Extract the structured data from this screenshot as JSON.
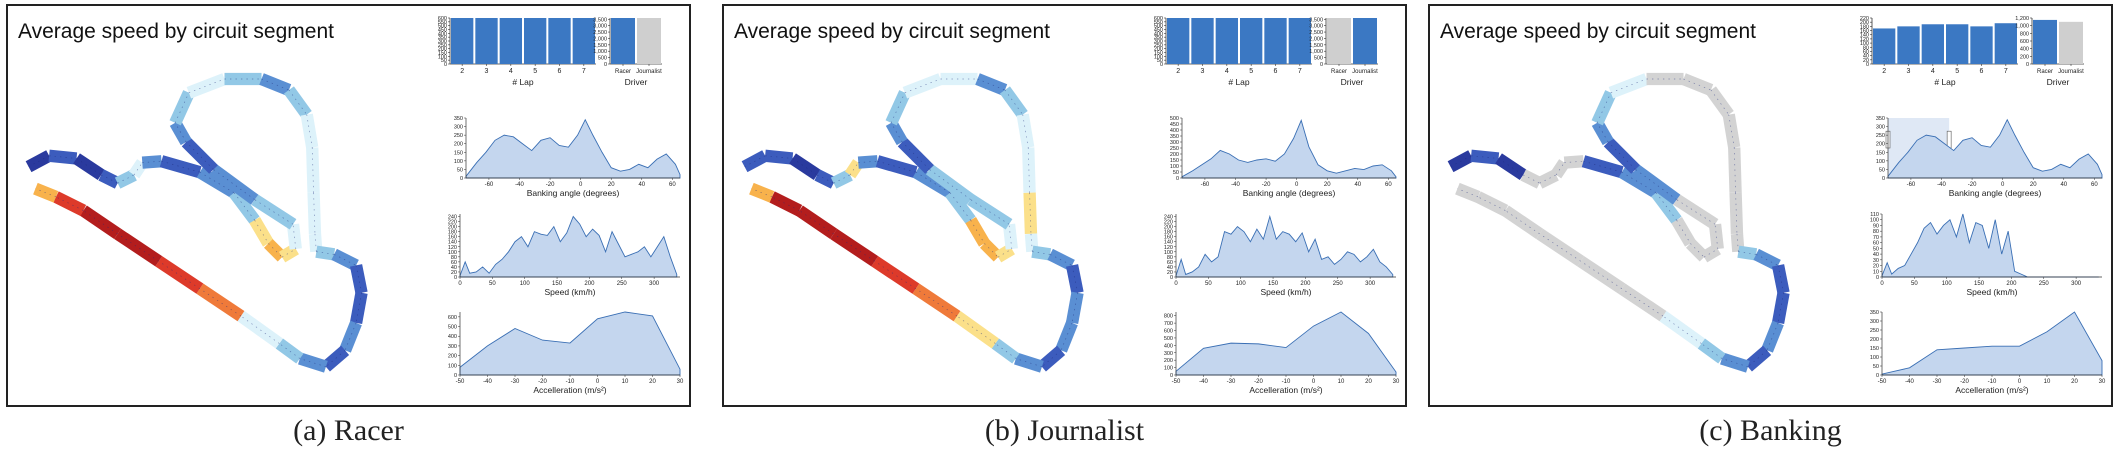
{
  "main_title": "Average speed by circuit segment",
  "colors": {
    "bar_active": "#3b78c3",
    "bar_inactive": "#cfcfcf",
    "area_fill": "#c4d6ee",
    "area_stroke": "#3a6fb4",
    "brush": "#dfe8f5",
    "track_grey": "#d3d3d3"
  },
  "track_palette": [
    "#2a3a9e",
    "#3c5cbd",
    "#5a8fd3",
    "#92c8e6",
    "#ddf2fa",
    "#fbe08a",
    "#f8b24c",
    "#ef7a3a",
    "#dd3a2a",
    "#b31d1d"
  ],
  "panels": [
    {
      "caption": "(a) Racer",
      "active_driver": "Racer",
      "brush": null
    },
    {
      "caption": "(b) Journalist",
      "active_driver": "Journalist",
      "brush": null
    },
    {
      "caption": "(c) Banking",
      "active_driver": "Racer",
      "brush": [
        -75,
        -35
      ]
    }
  ],
  "chart_data": [
    {
      "type": "bar",
      "panel": "(a) Racer",
      "title": "",
      "xlabel": "# Lap",
      "ylabel": "",
      "categories": [
        "2",
        "3",
        "4",
        "5",
        "6",
        "7"
      ],
      "values": [
        600,
        600,
        600,
        600,
        600,
        600
      ],
      "ylim": [
        0,
        600
      ],
      "yticks": [
        0,
        50,
        100,
        150,
        200,
        250,
        300,
        350,
        400,
        450,
        500,
        550,
        600
      ]
    },
    {
      "type": "bar",
      "panel": "(a) Racer",
      "title": "",
      "xlabel": "Driver",
      "ylabel": "",
      "categories": [
        "Racer",
        "Journalist"
      ],
      "values": [
        3600,
        3600
      ],
      "ylim": [
        0,
        3600
      ],
      "yticks": [
        0,
        500,
        1000,
        1500,
        2000,
        2500,
        3000,
        3500
      ],
      "tick_labels": [
        "0",
        "500",
        "1,000",
        "1,500",
        "2,000",
        "2,500",
        "3,000",
        "3,500"
      ],
      "active": [
        "Racer"
      ]
    },
    {
      "type": "area",
      "panel": "(a) Racer",
      "title": "",
      "xlabel": "Banking angle (degrees)",
      "ylabel": "",
      "xlim": [
        -75,
        65
      ],
      "ylim": [
        0,
        350
      ],
      "xticks": [
        -60,
        -40,
        -20,
        0,
        20,
        40,
        60
      ],
      "yticks": [
        0,
        50,
        100,
        150,
        200,
        250,
        300,
        350
      ],
      "x": [
        -75,
        -68,
        -62,
        -56,
        -50,
        -44,
        -38,
        -32,
        -26,
        -20,
        -14,
        -8,
        -2,
        3,
        8,
        14,
        20,
        26,
        32,
        38,
        44,
        50,
        56,
        62,
        65
      ],
      "y": [
        10,
        90,
        150,
        220,
        250,
        240,
        200,
        160,
        220,
        235,
        190,
        180,
        250,
        340,
        250,
        150,
        60,
        40,
        50,
        80,
        60,
        110,
        140,
        80,
        20
      ]
    },
    {
      "type": "area",
      "panel": "(a) Racer",
      "title": "",
      "xlabel": "Speed (km/h)",
      "ylabel": "",
      "xlim": [
        0,
        340
      ],
      "ylim": [
        0,
        250
      ],
      "xticks": [
        0,
        50,
        100,
        150,
        200,
        250,
        300
      ],
      "yticks": [
        0,
        20,
        40,
        60,
        80,
        100,
        120,
        140,
        160,
        180,
        200,
        220,
        240
      ],
      "x": [
        0,
        8,
        15,
        25,
        35,
        45,
        55,
        65,
        75,
        85,
        95,
        105,
        115,
        125,
        135,
        145,
        155,
        165,
        175,
        185,
        195,
        205,
        215,
        225,
        235,
        245,
        255,
        265,
        275,
        285,
        295,
        305,
        315,
        325,
        335
      ],
      "y": [
        5,
        60,
        15,
        20,
        40,
        15,
        50,
        70,
        100,
        140,
        160,
        120,
        180,
        170,
        165,
        200,
        140,
        175,
        240,
        210,
        160,
        190,
        165,
        100,
        180,
        130,
        80,
        90,
        100,
        120,
        80,
        120,
        160,
        80,
        10
      ]
    },
    {
      "type": "area",
      "panel": "(a) Racer",
      "title": "",
      "xlabel": "Accelleration (m/s²)",
      "ylabel": "",
      "xlim": [
        -50,
        30
      ],
      "ylim": [
        0,
        650
      ],
      "xticks": [
        -50,
        -40,
        -30,
        -20,
        -10,
        0,
        10,
        20,
        30
      ],
      "yticks": [
        0,
        100,
        200,
        300,
        400,
        500,
        600
      ],
      "x": [
        -50,
        -40,
        -30,
        -20,
        -10,
        0,
        10,
        20,
        30
      ],
      "y": [
        80,
        300,
        480,
        360,
        330,
        580,
        650,
        610,
        60
      ]
    },
    {
      "type": "bar",
      "panel": "(b) Journalist",
      "title": "",
      "xlabel": "# Lap",
      "ylabel": "",
      "categories": [
        "2",
        "3",
        "4",
        "5",
        "6",
        "7"
      ],
      "values": [
        600,
        600,
        600,
        600,
        600,
        600
      ],
      "ylim": [
        0,
        600
      ],
      "yticks": [
        0,
        50,
        100,
        150,
        200,
        250,
        300,
        350,
        400,
        450,
        500,
        550,
        600
      ]
    },
    {
      "type": "bar",
      "panel": "(b) Journalist",
      "title": "",
      "xlabel": "Driver",
      "ylabel": "",
      "categories": [
        "Racer",
        "Journalist"
      ],
      "values": [
        3600,
        3600
      ],
      "ylim": [
        0,
        3600
      ],
      "yticks": [
        0,
        500,
        1000,
        1500,
        2000,
        2500,
        3000,
        3500
      ],
      "tick_labels": [
        "0",
        "500",
        "1,000",
        "1,500",
        "2,000",
        "2,500",
        "3,000",
        "3,500"
      ],
      "active": [
        "Journalist"
      ]
    },
    {
      "type": "area",
      "panel": "(b) Journalist",
      "title": "",
      "xlabel": "Banking angle (degrees)",
      "ylabel": "",
      "xlim": [
        -75,
        65
      ],
      "ylim": [
        0,
        500
      ],
      "xticks": [
        -60,
        -40,
        -20,
        0,
        20,
        40,
        60
      ],
      "yticks": [
        0,
        50,
        100,
        150,
        200,
        250,
        300,
        350,
        400,
        450,
        500
      ],
      "x": [
        -75,
        -68,
        -62,
        -56,
        -50,
        -44,
        -38,
        -32,
        -26,
        -20,
        -14,
        -8,
        -2,
        3,
        8,
        14,
        20,
        26,
        32,
        38,
        44,
        50,
        56,
        62,
        65
      ],
      "y": [
        10,
        60,
        110,
        160,
        230,
        200,
        150,
        130,
        150,
        160,
        140,
        200,
        330,
        480,
        260,
        110,
        60,
        40,
        60,
        80,
        70,
        100,
        110,
        60,
        10
      ]
    },
    {
      "type": "area",
      "panel": "(b) Journalist",
      "title": "",
      "xlabel": "Speed (km/h)",
      "ylabel": "",
      "xlim": [
        0,
        340
      ],
      "ylim": [
        0,
        250
      ],
      "xticks": [
        0,
        50,
        100,
        150,
        200,
        250,
        300
      ],
      "yticks": [
        0,
        20,
        40,
        60,
        80,
        100,
        120,
        140,
        160,
        180,
        200,
        220,
        240
      ],
      "x": [
        0,
        8,
        15,
        25,
        35,
        45,
        55,
        65,
        75,
        85,
        95,
        105,
        115,
        125,
        135,
        145,
        155,
        165,
        175,
        185,
        195,
        205,
        215,
        225,
        235,
        245,
        255,
        265,
        275,
        285,
        295,
        305,
        315,
        325,
        335
      ],
      "y": [
        5,
        70,
        10,
        20,
        40,
        90,
        60,
        80,
        180,
        170,
        200,
        180,
        140,
        190,
        150,
        240,
        150,
        180,
        170,
        140,
        175,
        100,
        150,
        70,
        80,
        50,
        70,
        100,
        90,
        60,
        80,
        110,
        60,
        40,
        10
      ]
    },
    {
      "type": "area",
      "panel": "(b) Journalist",
      "title": "",
      "xlabel": "Accelleration (m/s²)",
      "ylabel": "",
      "xlim": [
        -50,
        30
      ],
      "ylim": [
        0,
        850
      ],
      "xticks": [
        -50,
        -40,
        -30,
        -20,
        -10,
        0,
        10,
        20,
        30
      ],
      "yticks": [
        0,
        100,
        200,
        300,
        400,
        500,
        600,
        700,
        800
      ],
      "x": [
        -50,
        -40,
        -30,
        -20,
        -10,
        0,
        10,
        20,
        30
      ],
      "y": [
        50,
        360,
        430,
        420,
        370,
        660,
        850,
        560,
        40
      ]
    },
    {
      "type": "bar",
      "panel": "(c) Banking",
      "title": "",
      "xlabel": "# Lap",
      "ylabel": "",
      "categories": [
        "2",
        "3",
        "4",
        "5",
        "6",
        "7"
      ],
      "values": [
        170,
        180,
        190,
        190,
        180,
        195
      ],
      "ylim": [
        0,
        220
      ],
      "yticks": [
        0,
        20,
        40,
        60,
        80,
        100,
        120,
        140,
        160,
        180,
        200,
        220
      ]
    },
    {
      "type": "bar",
      "panel": "(c) Banking",
      "title": "",
      "xlabel": "Driver",
      "ylabel": "",
      "categories": [
        "Racer",
        "Journalist"
      ],
      "values": [
        1150,
        1100
      ],
      "ylim": [
        0,
        1200
      ],
      "yticks": [
        0,
        200,
        400,
        600,
        800,
        1000,
        1200
      ],
      "tick_labels": [
        "0",
        "200",
        "400",
        "600",
        "800",
        "1,000",
        "1,200"
      ],
      "active": [
        "Racer"
      ]
    },
    {
      "type": "area",
      "panel": "(c) Banking",
      "title": "",
      "xlabel": "Banking angle (degrees)",
      "ylabel": "",
      "xlim": [
        -75,
        65
      ],
      "ylim": [
        0,
        350
      ],
      "xticks": [
        -60,
        -40,
        -20,
        0,
        20,
        40,
        60
      ],
      "yticks": [
        0,
        50,
        100,
        150,
        200,
        250,
        300,
        350
      ],
      "x": [
        -75,
        -68,
        -62,
        -56,
        -50,
        -44,
        -38,
        -32,
        -26,
        -20,
        -14,
        -8,
        -2,
        3,
        8,
        14,
        20,
        26,
        32,
        38,
        44,
        50,
        56,
        62,
        65
      ],
      "y": [
        10,
        90,
        150,
        220,
        250,
        240,
        200,
        160,
        220,
        235,
        190,
        180,
        250,
        340,
        250,
        150,
        60,
        40,
        50,
        80,
        60,
        110,
        140,
        80,
        20
      ]
    },
    {
      "type": "area",
      "panel": "(c) Banking",
      "title": "",
      "xlabel": "Speed (km/h)",
      "ylabel": "",
      "xlim": [
        0,
        340
      ],
      "ylim": [
        0,
        110
      ],
      "xticks": [
        0,
        50,
        100,
        150,
        200,
        250,
        300
      ],
      "yticks": [
        0,
        10,
        20,
        30,
        40,
        50,
        60,
        70,
        80,
        90,
        100,
        110
      ],
      "x": [
        0,
        8,
        15,
        25,
        35,
        45,
        55,
        65,
        75,
        85,
        95,
        105,
        115,
        125,
        135,
        145,
        155,
        165,
        175,
        185,
        195,
        205,
        215,
        225,
        235,
        245,
        255,
        265,
        275,
        285,
        295,
        305,
        315,
        325,
        335
      ],
      "y": [
        2,
        25,
        5,
        15,
        20,
        40,
        60,
        85,
        95,
        75,
        90,
        100,
        70,
        110,
        60,
        95,
        90,
        50,
        100,
        40,
        80,
        10,
        5,
        0,
        0,
        0,
        0,
        0,
        0,
        0,
        0,
        0,
        0,
        0,
        0
      ]
    },
    {
      "type": "area",
      "panel": "(c) Banking",
      "title": "",
      "xlabel": "Accelleration (m/s²)",
      "ylabel": "",
      "xlim": [
        -50,
        30
      ],
      "ylim": [
        0,
        350
      ],
      "xticks": [
        -50,
        -40,
        -30,
        -20,
        -10,
        0,
        10,
        20,
        30
      ],
      "yticks": [
        0,
        50,
        100,
        150,
        200,
        250,
        300,
        350
      ],
      "x": [
        -50,
        -40,
        -30,
        -20,
        -10,
        0,
        10,
        20,
        30
      ],
      "y": [
        5,
        40,
        140,
        150,
        160,
        160,
        240,
        350,
        80
      ]
    }
  ]
}
